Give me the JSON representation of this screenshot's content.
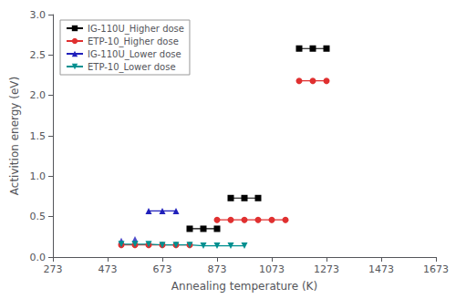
{
  "chart_data": {
    "type": "line",
    "xlabel": "Annealing temperature (K)",
    "ylabel": "Activition energy (eV)",
    "xlim": [
      273,
      1673
    ],
    "ylim": [
      0.0,
      3.0
    ],
    "xticks": [
      273,
      473,
      673,
      873,
      1073,
      1273,
      1473,
      1673
    ],
    "yticks": [
      {
        "value": 0.0,
        "label": "0.0"
      },
      0.5,
      {
        "value": 1.0,
        "label": "1.0"
      },
      1.5,
      {
        "value": 2.0,
        "label": "2.0"
      },
      2.5,
      {
        "value": 3.0,
        "label": "3.0"
      }
    ],
    "grid": false,
    "legend": "upper left",
    "series": [
      {
        "name": "IG-110U_Higher dose",
        "color": "black",
        "marker": "square",
        "x": [
          773,
          823,
          873
        ],
        "values": [
          0.35,
          0.35,
          0.35
        ]
      },
      {
        "name": "IG-110U_Higher dose",
        "color": "black",
        "marker": "square",
        "x": [
          923,
          973,
          1023
        ],
        "values": [
          0.73,
          0.73,
          0.73
        ]
      },
      {
        "name": "IG-110U_Higher dose",
        "color": "black",
        "marker": "square",
        "x": [
          1173,
          1223,
          1273
        ],
        "values": [
          2.58,
          2.58,
          2.58
        ]
      },
      {
        "name": "ETP-10_Higher dose",
        "color": "#e03030",
        "marker": "circle",
        "x": [
          523,
          573,
          623,
          673,
          723,
          773
        ],
        "values": [
          0.15,
          0.15,
          0.15,
          0.15,
          0.15,
          0.15
        ]
      },
      {
        "name": "ETP-10_Higher dose",
        "color": "#e03030",
        "marker": "circle",
        "x": [
          873,
          923,
          973,
          1023,
          1073,
          1123
        ],
        "values": [
          0.46,
          0.46,
          0.46,
          0.46,
          0.46,
          0.46
        ]
      },
      {
        "name": "ETP-10_Higher dose",
        "color": "#e03030",
        "marker": "circle",
        "x": [
          1173,
          1223,
          1273
        ],
        "values": [
          2.18,
          2.18,
          2.18
        ]
      },
      {
        "name": "IG-110U_Lower dose",
        "color": "#2020bb",
        "marker": "triangle",
        "x": [
          623,
          673,
          723
        ],
        "values": [
          0.57,
          0.57,
          0.57
        ]
      },
      {
        "name": "IG-110U_Lower dose",
        "color": "#2020bb",
        "marker": "triangle",
        "type": "scatter",
        "x": [
          523,
          573
        ],
        "values": [
          0.2,
          0.22
        ]
      },
      {
        "name": "ETP-10_Lower dose",
        "color": "#009090",
        "marker": "triangle_down",
        "x": [
          523,
          573,
          623,
          673,
          723,
          773,
          823,
          873,
          923,
          973
        ],
        "values": [
          0.16,
          0.16,
          0.16,
          0.15,
          0.15,
          0.15,
          0.14,
          0.14,
          0.14,
          0.14
        ]
      }
    ]
  }
}
